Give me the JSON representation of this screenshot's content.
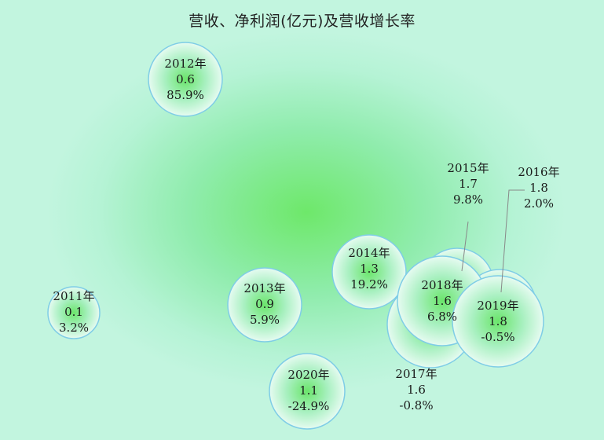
{
  "chart_data": {
    "type": "scatter",
    "title": "营收、净利润(亿元)及营收增长率",
    "bubbles": [
      {
        "year": "2011年",
        "profit": "0.1",
        "growth": "3.2%"
      },
      {
        "year": "2012年",
        "profit": "0.6",
        "growth": "85.9%"
      },
      {
        "year": "2013年",
        "profit": "0.9",
        "growth": "5.9%"
      },
      {
        "year": "2014年",
        "profit": "1.3",
        "growth": "19.2%"
      },
      {
        "year": "2015年",
        "profit": "1.7",
        "growth": "9.8%"
      },
      {
        "year": "2016年",
        "profit": "1.8",
        "growth": "2.0%"
      },
      {
        "year": "2017年",
        "profit": "1.6",
        "growth": "-0.8%"
      },
      {
        "year": "2018年",
        "profit": "1.6",
        "growth": "6.8%"
      },
      {
        "year": "2019年",
        "profit": "1.8",
        "growth": "-0.5%"
      },
      {
        "year": "2020年",
        "profit": "1.1",
        "growth": "-24.9%"
      }
    ]
  }
}
